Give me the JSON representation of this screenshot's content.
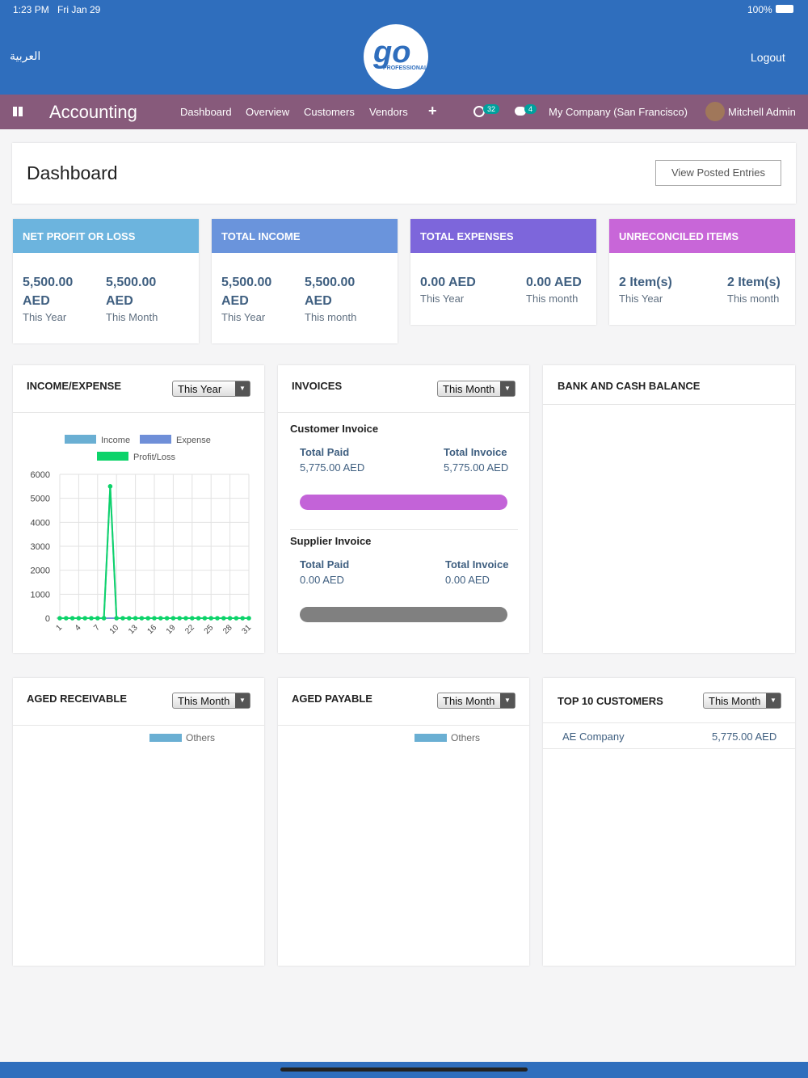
{
  "status": {
    "time": "1:23 PM",
    "date": "Fri Jan 29",
    "battery": "100%"
  },
  "header": {
    "language": "العربية",
    "logout": "Logout",
    "logo_text": "PROFESSIONAL"
  },
  "nav": {
    "app": "Accounting",
    "items": [
      "Dashboard",
      "Overview",
      "Customers",
      "Vendors",
      "+"
    ],
    "activity_badge": "32",
    "message_badge": "4",
    "company": "My Company (San Francisco)",
    "user": "Mitchell Admin"
  },
  "page": {
    "title": "Dashboard",
    "button": "View Posted Entries"
  },
  "cards": [
    {
      "title": "NET PROFIT OR LOSS",
      "color": "#6cb4de",
      "items": [
        {
          "value": "5,500.00 AED",
          "period": "This Year"
        },
        {
          "value": "5,500.00 AED",
          "period": "This Month"
        }
      ]
    },
    {
      "title": "TOTAL INCOME",
      "color": "#6a94dc",
      "items": [
        {
          "value": "5,500.00 AED",
          "period": "This Year"
        },
        {
          "value": "5,500.00 AED",
          "period": "This month"
        }
      ]
    },
    {
      "title": "TOTAL EXPENSES",
      "color": "#7d66db",
      "items": [
        {
          "value": "0.00 AED",
          "period": "This Year"
        },
        {
          "value": "0.00 AED",
          "period": "This month"
        }
      ]
    },
    {
      "title": "UNRECONCILED ITEMS",
      "color": "#c866d8",
      "items": [
        {
          "value": "2 Item(s)",
          "period": "This Year"
        },
        {
          "value": "2 Item(s)",
          "period": "This month"
        }
      ]
    }
  ],
  "income_expense": {
    "title": "INCOME/EXPENSE",
    "filter": "This Year"
  },
  "chart_data": {
    "type": "line",
    "x": [
      1,
      2,
      3,
      4,
      5,
      6,
      7,
      8,
      9,
      10,
      11,
      12,
      13,
      14,
      15,
      16,
      17,
      18,
      19,
      20,
      21,
      22,
      23,
      24,
      25,
      26,
      27,
      28,
      29,
      30,
      31
    ],
    "xlim": [
      1,
      31
    ],
    "xticks": [
      1,
      4,
      7,
      10,
      13,
      16,
      19,
      22,
      25,
      28,
      31
    ],
    "ylim": [
      0,
      6000
    ],
    "yticks": [
      0,
      1000,
      2000,
      3000,
      4000,
      5000,
      6000
    ],
    "grid": true,
    "series": [
      {
        "name": "Income",
        "color": "#6aafd3",
        "values": [
          0,
          0,
          0,
          0,
          0,
          0,
          0,
          0,
          5500,
          0,
          0,
          0,
          0,
          0,
          0,
          0,
          0,
          0,
          0,
          0,
          0,
          0,
          0,
          0,
          0,
          0,
          0,
          0,
          0,
          0,
          0
        ]
      },
      {
        "name": "Expense",
        "color": "#6f8fd8",
        "values": [
          0,
          0,
          0,
          0,
          0,
          0,
          0,
          0,
          0,
          0,
          0,
          0,
          0,
          0,
          0,
          0,
          0,
          0,
          0,
          0,
          0,
          0,
          0,
          0,
          0,
          0,
          0,
          0,
          0,
          0,
          0
        ]
      },
      {
        "name": "Profit/Loss",
        "color": "#0dd36a",
        "values": [
          0,
          0,
          0,
          0,
          0,
          0,
          0,
          0,
          5500,
          0,
          0,
          0,
          0,
          0,
          0,
          0,
          0,
          0,
          0,
          0,
          0,
          0,
          0,
          0,
          0,
          0,
          0,
          0,
          0,
          0,
          0
        ]
      }
    ]
  },
  "invoices": {
    "title": "INVOICES",
    "filter": "This Month",
    "customer": {
      "heading": "Customer Invoice",
      "paid_label": "Total Paid",
      "paid": "5,775.00 AED",
      "total_label": "Total Invoice",
      "total": "5,775.00 AED"
    },
    "supplier": {
      "heading": "Supplier Invoice",
      "paid_label": "Total Paid",
      "paid": "0.00 AED",
      "total_label": "Total Invoice",
      "total": "0.00 AED"
    }
  },
  "bank": {
    "title": "BANK AND CASH BALANCE"
  },
  "aged_receivable": {
    "title": "AGED RECEIVABLE",
    "filter": "This Month",
    "legend": "Others"
  },
  "aged_payable": {
    "title": "AGED PAYABLE",
    "filter": "This Month",
    "legend": "Others"
  },
  "top_customers": {
    "title": "TOP 10 CUSTOMERS",
    "filter": "This Month",
    "rows": [
      {
        "name": "AE Company",
        "amount": "5,775.00 AED"
      }
    ]
  }
}
